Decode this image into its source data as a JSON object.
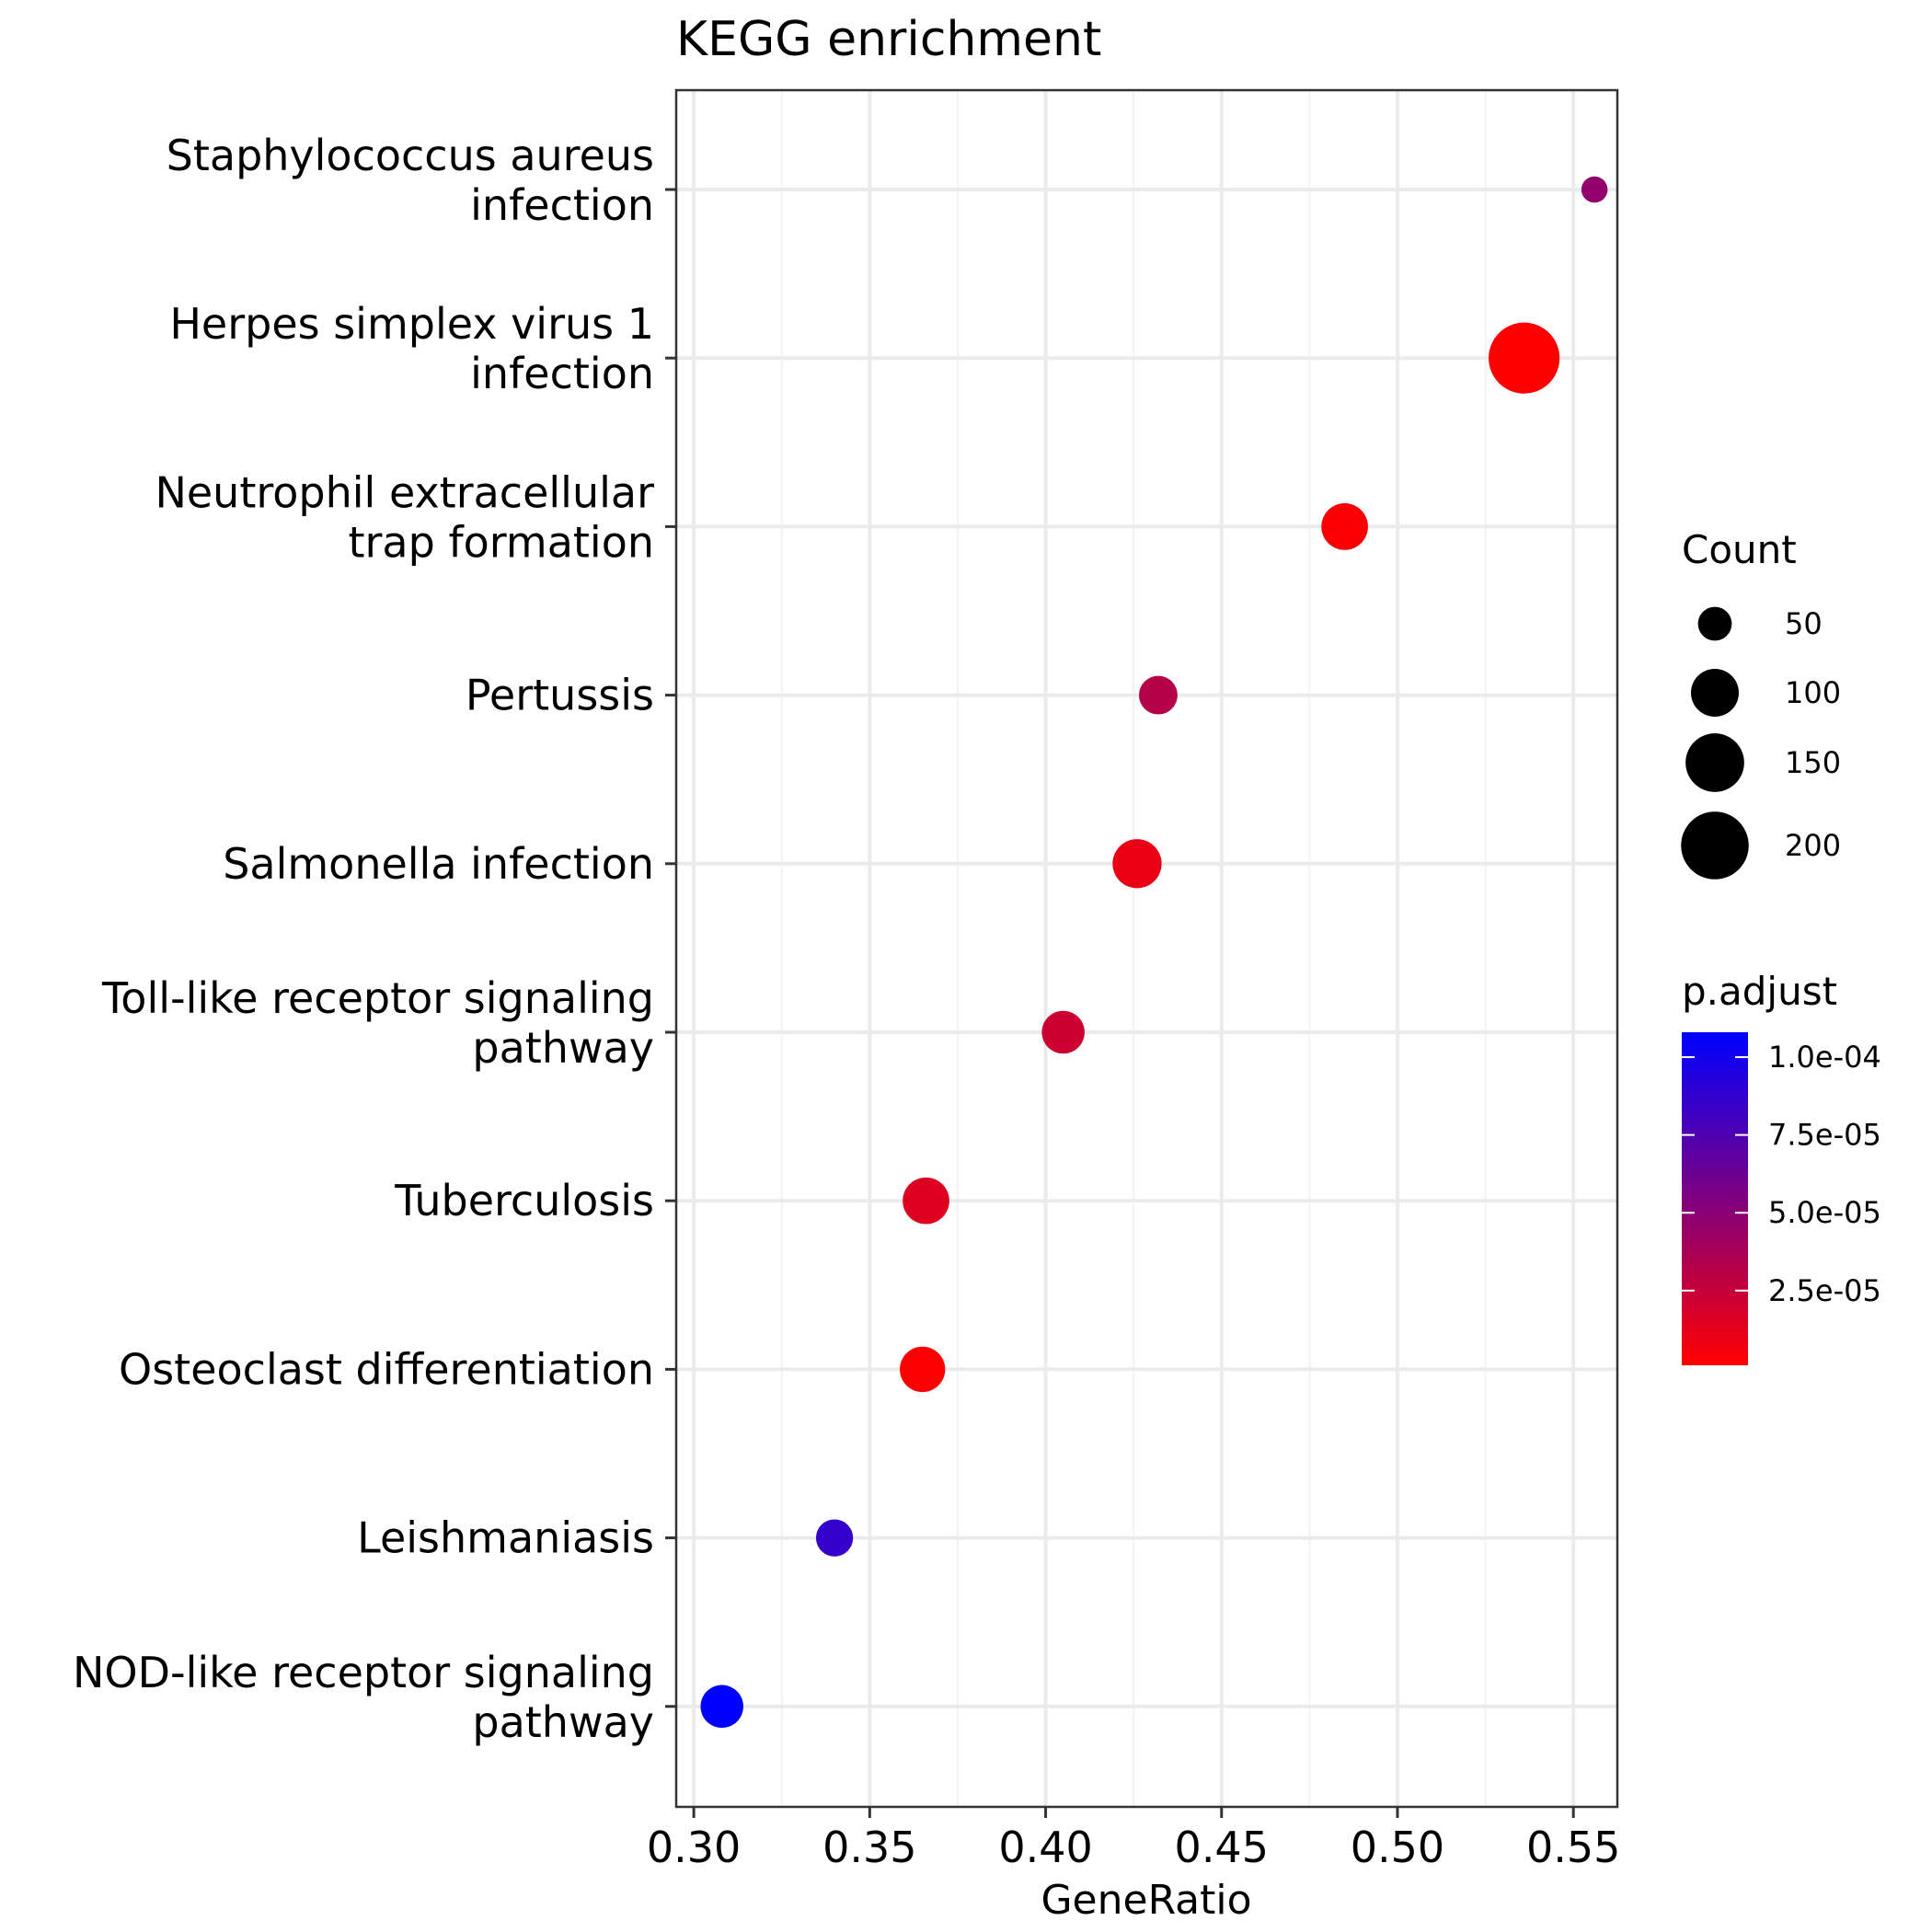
{
  "chart_data": {
    "type": "scatter",
    "title": "KEGG enrichment",
    "xlabel": "GeneRatio",
    "ylabel": "",
    "xlim": [
      0.295,
      0.5625
    ],
    "xticks": [
      0.3,
      0.35,
      0.4,
      0.45,
      0.5,
      0.55
    ],
    "xtick_labels": [
      "0.30",
      "0.35",
      "0.40",
      "0.45",
      "0.50",
      "0.55"
    ],
    "grid": true,
    "categories": [
      "Staphylococcus aureus infection",
      "Herpes simplex virus 1 infection",
      "Neutrophil extracellular trap formation",
      "Pertussis",
      "Salmonella infection",
      "Toll-like receptor signaling pathway",
      "Tuberculosis",
      "Osteoclast differentiation",
      "Leishmaniasis",
      "NOD-like receptor signaling pathway"
    ],
    "category_label_lines": [
      [
        "Staphylococcus aureus",
        "infection"
      ],
      [
        "Herpes simplex virus 1",
        "infection"
      ],
      [
        "Neutrophil extracellular",
        "trap formation"
      ],
      [
        "Pertussis"
      ],
      [
        "Salmonella infection"
      ],
      [
        "Toll-like receptor signaling",
        "pathway"
      ],
      [
        "Tuberculosis"
      ],
      [
        "Osteoclast differentiation"
      ],
      [
        "Leishmaniasis"
      ],
      [
        "NOD-like receptor signaling",
        "pathway"
      ]
    ],
    "gene_ratio": [
      0.556,
      0.536,
      0.485,
      0.432,
      0.426,
      0.405,
      0.366,
      0.365,
      0.34,
      0.308
    ],
    "count": [
      30,
      220,
      95,
      65,
      105,
      80,
      95,
      90,
      60,
      80
    ],
    "p_adjust": [
      4.6e-05,
      1e-06,
      3e-06,
      3.2e-05,
      1e-05,
      2.2e-05,
      1.5e-05,
      2e-06,
      8.6e-05,
      0.000108
    ],
    "size_legend": {
      "title": "Count",
      "values": [
        50,
        100,
        150,
        200
      ],
      "labels": [
        "50",
        "100",
        "150",
        "200"
      ]
    },
    "color_legend": {
      "title": "p.adjust",
      "range": [
        1e-06,
        0.000108
      ],
      "low_color": "#ff0000",
      "high_color": "#0000ff",
      "ticks": [
        2.5e-05,
        5e-05,
        7.5e-05,
        0.0001
      ],
      "labels": [
        "2.5e-05",
        "5.0e-05",
        "7.5e-05",
        "1.0e-04"
      ]
    },
    "legend_position": "right"
  }
}
